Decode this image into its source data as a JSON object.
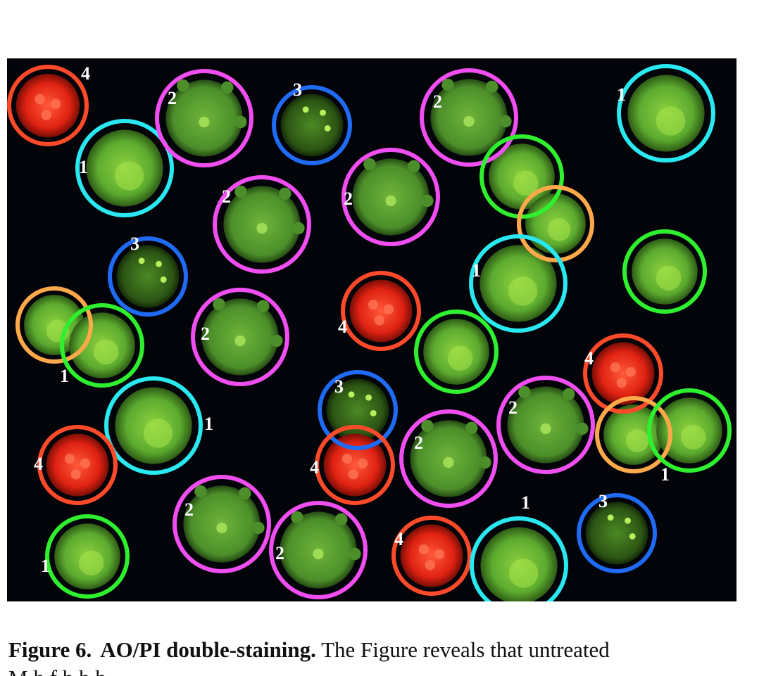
{
  "figure": {
    "label": "Figure 6.",
    "title": "AO/PI double-staining.",
    "text": "The Figure reveals that untreated",
    "line2_fragment": "M                             h                    f                 h    h                    h"
  },
  "colors": {
    "background": "#03030a",
    "ring_red": "#ff4a2a",
    "ring_cyan": "#29e8f0",
    "ring_magenta": "#f04ef0",
    "ring_blue": "#1f6bf5",
    "ring_green": "#2ef02e",
    "ring_orange": "#ffa94a",
    "cell_green": "#5cab2f",
    "cell_red": "#e02212"
  },
  "stage_labels": [
    "1",
    "2",
    "3",
    "4"
  ],
  "cells": [
    {
      "stage": "4",
      "ring": "red",
      "type": "red"
    },
    {
      "stage": "1",
      "ring": "cyan",
      "type": "viable"
    },
    {
      "stage": "2",
      "ring": "magenta",
      "type": "blebbing"
    },
    {
      "stage": "3",
      "ring": "blue",
      "type": "dark"
    },
    {
      "stage": "2",
      "ring": "magenta",
      "type": "blebbing"
    },
    {
      "stage": "1",
      "ring": "cyan",
      "type": "viable"
    },
    {
      "stage": "2",
      "ring": "magenta",
      "type": "blebbing"
    },
    {
      "stage": "2",
      "ring": "magenta",
      "type": "blebbing"
    },
    {
      "stage": "",
      "ring": "green",
      "type": "viable"
    },
    {
      "stage": "",
      "ring": "orange",
      "type": "viable"
    },
    {
      "stage": "3",
      "ring": "blue",
      "type": "dark"
    },
    {
      "stage": "1",
      "ring": "cyan",
      "type": "viable"
    },
    {
      "stage": "",
      "ring": "green",
      "type": "viable"
    },
    {
      "stage": "",
      "ring": "orange",
      "type": "viable"
    },
    {
      "stage": "1",
      "ring": "green",
      "type": "viable"
    },
    {
      "stage": "2",
      "ring": "magenta",
      "type": "blebbing"
    },
    {
      "stage": "4",
      "ring": "red",
      "type": "red"
    },
    {
      "stage": "",
      "ring": "green",
      "type": "viable"
    },
    {
      "stage": "4",
      "ring": "red",
      "type": "red"
    },
    {
      "stage": "1",
      "ring": "cyan",
      "type": "viable"
    },
    {
      "stage": "3",
      "ring": "blue",
      "type": "dark"
    },
    {
      "stage": "2",
      "ring": "magenta",
      "type": "blebbing"
    },
    {
      "stage": "2",
      "ring": "magenta",
      "type": "blebbing"
    },
    {
      "stage": "",
      "ring": "orange",
      "type": "viable"
    },
    {
      "stage": "1",
      "ring": "green",
      "type": "viable"
    },
    {
      "stage": "4",
      "ring": "red",
      "type": "red"
    },
    {
      "stage": "4",
      "ring": "red",
      "type": "red"
    },
    {
      "stage": "2",
      "ring": "magenta",
      "type": "blebbing"
    },
    {
      "stage": "2",
      "ring": "magenta",
      "type": "blebbing"
    },
    {
      "stage": "1",
      "ring": "green",
      "type": "viable"
    },
    {
      "stage": "4",
      "ring": "red",
      "type": "red"
    },
    {
      "stage": "1",
      "ring": "cyan",
      "type": "viable"
    },
    {
      "stage": "3",
      "ring": "blue",
      "type": "dark"
    }
  ]
}
